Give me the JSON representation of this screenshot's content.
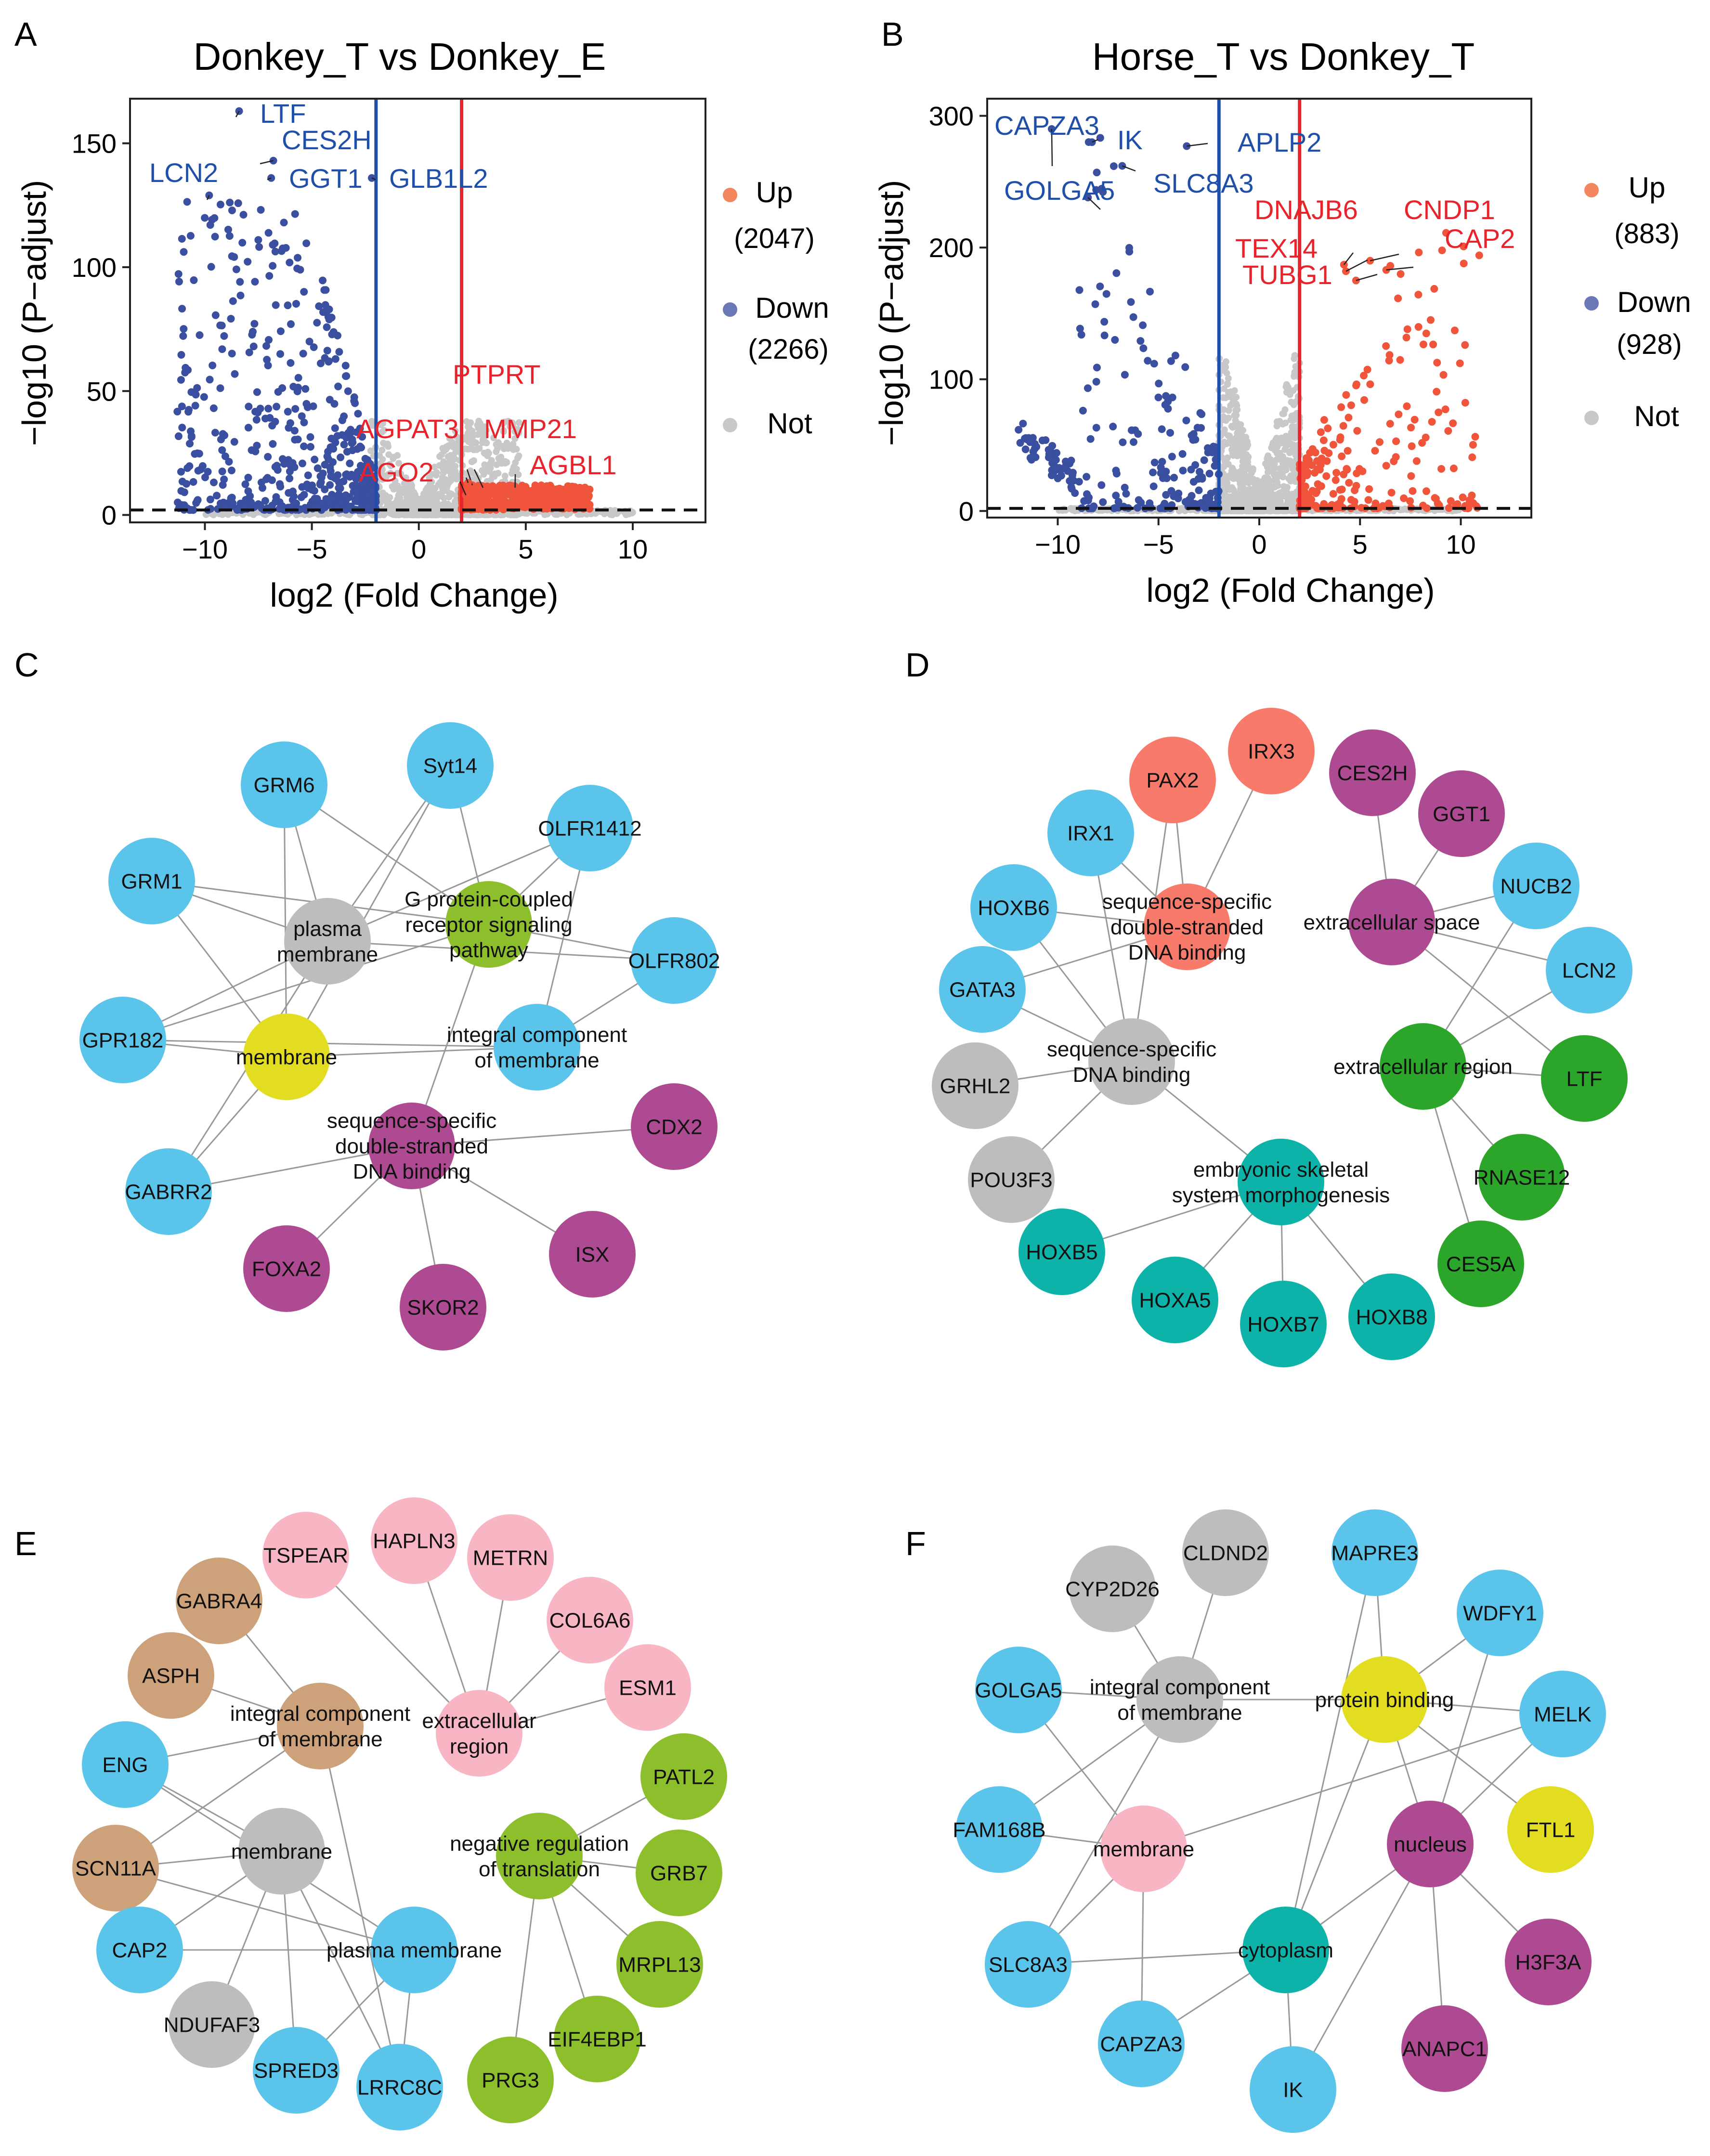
{
  "panel_letters": [
    "A",
    "B",
    "C",
    "D",
    "E",
    "F"
  ],
  "legend_labels": {
    "up": "Up",
    "down": "Down",
    "not": "Not"
  },
  "colors": {
    "up": "#f0543a",
    "up_legend": "#f4865f",
    "down": "#3a4fa0",
    "down_legend": "#6b78b6",
    "not": "#c8c8c8",
    "blue_line": "#1f4fa8",
    "red_line": "#e8232b",
    "gene_blue": "#1f4fa8",
    "gene_red": "#e8232b",
    "node_blue": "#5bc4eb",
    "node_grey": "#bdbdbd",
    "node_yellow": "#e3dd22",
    "node_green": "#8dbe2c",
    "node_purple": "#ad4a91",
    "node_salmon": "#f87a6a",
    "node_teal": "#0db3a8",
    "node_dkgreen": "#2ca62a",
    "node_pink": "#f8b6c5",
    "node_tan": "#cda27b",
    "edge": "#999999"
  },
  "chart_data": [
    {
      "type": "scatter",
      "title": "Donkey_T vs Donkey_E",
      "xlabel": "log2 (Fold Change)",
      "ylabel": "−log10 (P−adjust)",
      "xlim": [
        -13.5,
        13.4
      ],
      "ylim": [
        -3,
        168
      ],
      "xticks": [
        -10,
        -5,
        0,
        5,
        10
      ],
      "yticks": [
        0,
        50,
        100,
        150
      ],
      "vlines": [
        -2,
        2
      ],
      "hline": 2,
      "legend": {
        "up_label": "Up",
        "up_count": "(2047)",
        "down_label": "Down",
        "down_count": "(2266)",
        "not_label": "Not"
      },
      "series_counts": {
        "up": 2047,
        "down": 2266
      },
      "seed": 11,
      "labeled_genes": [
        {
          "name": "LTF",
          "x": -8.4,
          "y": 163,
          "group": "down"
        },
        {
          "name": "CES2H",
          "x": -6.8,
          "y": 143,
          "group": "down"
        },
        {
          "name": "GGT1",
          "x": -6.9,
          "y": 136,
          "group": "down"
        },
        {
          "name": "LCN2",
          "x": -9.8,
          "y": 129,
          "group": "down"
        },
        {
          "name": "GLB1L2",
          "x": -2.2,
          "y": 136,
          "group": "down"
        },
        {
          "name": "PTPRT",
          "x": 2.5,
          "y": 12,
          "group": "up"
        },
        {
          "name": "MMP21",
          "x": 3.0,
          "y": 11,
          "group": "up"
        },
        {
          "name": "AGPAT3",
          "x": 2.3,
          "y": 13,
          "group": "up"
        },
        {
          "name": "AGO2",
          "x": 2.2,
          "y": 8,
          "group": "up"
        },
        {
          "name": "AGBL1",
          "x": 4.5,
          "y": 11,
          "group": "up"
        }
      ]
    },
    {
      "type": "scatter",
      "title": "Horse_T vs Donkey_T",
      "xlabel": "log2 (Fold Change)",
      "ylabel": "−log10 (P−adjust)",
      "xlim": [
        -13.5,
        13.5
      ],
      "ylim": [
        -5,
        313
      ],
      "xticks": [
        -10,
        -5,
        0,
        5,
        10
      ],
      "yticks": [
        0,
        100,
        200,
        300
      ],
      "vlines": [
        -2,
        2
      ],
      "hline": 2,
      "legend": {
        "up_label": "Up",
        "up_count": "(883)",
        "down_label": "Down",
        "down_count": "(928)",
        "not_label": "Not"
      },
      "series_counts": {
        "up": 883,
        "down": 928
      },
      "seed": 29,
      "labeled_genes": [
        {
          "name": "CAPZA3",
          "x": -10.3,
          "y": 290,
          "group": "down"
        },
        {
          "name": "IK",
          "x": -8.3,
          "y": 280,
          "group": "down"
        },
        {
          "name": "APLP2",
          "x": -3.6,
          "y": 277,
          "group": "down"
        },
        {
          "name": "SLC8A3",
          "x": -6.8,
          "y": 262,
          "group": "down"
        },
        {
          "name": "GOLGA5",
          "x": -8.5,
          "y": 238,
          "group": "down"
        },
        {
          "name": "DNAJB6",
          "x": 4.2,
          "y": 187,
          "group": "up"
        },
        {
          "name": "CNDP1",
          "x": 5.5,
          "y": 190,
          "group": "up"
        },
        {
          "name": "TEX14",
          "x": 4.3,
          "y": 182,
          "group": "up"
        },
        {
          "name": "CAP2",
          "x": 6.3,
          "y": 183,
          "group": "up"
        },
        {
          "name": "TUBG1",
          "x": 4.8,
          "y": 175,
          "group": "up"
        }
      ]
    },
    {
      "type": "network",
      "panel": "C",
      "nodes": [
        {
          "id": "GRM6",
          "label": "GRM6",
          "color": "blue"
        },
        {
          "id": "Syt14",
          "label": "Syt14",
          "color": "blue"
        },
        {
          "id": "OLFR1412",
          "label": "OLFR1412",
          "color": "blue"
        },
        {
          "id": "GRM1",
          "label": "GRM1",
          "color": "blue"
        },
        {
          "id": "pm",
          "label": "plasma\nmembrane",
          "color": "grey"
        },
        {
          "id": "gpcr",
          "label": "G protein-coupled\nreceptor signaling\npathway",
          "color": "green"
        },
        {
          "id": "OLFR802",
          "label": "OLFR802",
          "color": "blue"
        },
        {
          "id": "GPR182",
          "label": "GPR182",
          "color": "blue"
        },
        {
          "id": "mem",
          "label": "membrane",
          "color": "yellow"
        },
        {
          "id": "icm",
          "label": "integral component\nof membrane",
          "color": "blue"
        },
        {
          "id": "ssds",
          "label": "sequence-specific\ndouble-stranded\nDNA binding",
          "color": "purple"
        },
        {
          "id": "CDX2",
          "label": "CDX2",
          "color": "purple"
        },
        {
          "id": "GABRR2",
          "label": "GABRR2",
          "color": "blue"
        },
        {
          "id": "FOXA2",
          "label": "FOXA2",
          "color": "purple"
        },
        {
          "id": "SKOR2",
          "label": "SKOR2",
          "color": "purple"
        },
        {
          "id": "ISX",
          "label": "ISX",
          "color": "purple"
        }
      ],
      "edges": [
        [
          "GRM6",
          "pm"
        ],
        [
          "GRM6",
          "gpcr"
        ],
        [
          "GRM6",
          "mem"
        ],
        [
          "Syt14",
          "pm"
        ],
        [
          "Syt14",
          "mem"
        ],
        [
          "Syt14",
          "gpcr"
        ],
        [
          "OLFR1412",
          "gpcr"
        ],
        [
          "OLFR1412",
          "pm"
        ],
        [
          "OLFR1412",
          "icm"
        ],
        [
          "GRM1",
          "pm"
        ],
        [
          "GRM1",
          "gpcr"
        ],
        [
          "GRM1",
          "mem"
        ],
        [
          "OLFR802",
          "gpcr"
        ],
        [
          "OLFR802",
          "pm"
        ],
        [
          "OLFR802",
          "icm"
        ],
        [
          "GPR182",
          "pm"
        ],
        [
          "GPR182",
          "mem"
        ],
        [
          "GPR182",
          "gpcr"
        ],
        [
          "GPR182",
          "icm"
        ],
        [
          "GABRR2",
          "pm"
        ],
        [
          "GABRR2",
          "mem"
        ],
        [
          "GABRR2",
          "ssds"
        ],
        [
          "CDX2",
          "ssds"
        ],
        [
          "FOXA2",
          "ssds"
        ],
        [
          "SKOR2",
          "ssds"
        ],
        [
          "ISX",
          "ssds"
        ],
        [
          "mem",
          "icm"
        ],
        [
          "gpcr",
          "ssds"
        ]
      ]
    },
    {
      "type": "network",
      "panel": "D",
      "nodes": [
        {
          "id": "IRX3",
          "label": "IRX3",
          "color": "salmon"
        },
        {
          "id": "PAX2",
          "label": "PAX2",
          "color": "salmon"
        },
        {
          "id": "CES2H",
          "label": "CES2H",
          "color": "purple"
        },
        {
          "id": "GGT1",
          "label": "GGT1",
          "color": "purple"
        },
        {
          "id": "IRX1",
          "label": "IRX1",
          "color": "blue"
        },
        {
          "id": "NUCB2",
          "label": "NUCB2",
          "color": "blue"
        },
        {
          "id": "HOXB6",
          "label": "HOXB6",
          "color": "blue"
        },
        {
          "id": "ssds2",
          "label": "sequence-specific\ndouble-stranded\nDNA binding",
          "color": "salmon"
        },
        {
          "id": "es",
          "label": "extracellular space",
          "color": "purple"
        },
        {
          "id": "LCN2",
          "label": "LCN2",
          "color": "blue"
        },
        {
          "id": "GATA3",
          "label": "GATA3",
          "color": "blue"
        },
        {
          "id": "ssdb",
          "label": "sequence-specific\nDNA binding",
          "color": "grey"
        },
        {
          "id": "er",
          "label": "extracellular region",
          "color": "dkgreen"
        },
        {
          "id": "LTF",
          "label": "LTF",
          "color": "dkgreen"
        },
        {
          "id": "GRHL2",
          "label": "GRHL2",
          "color": "grey"
        },
        {
          "id": "RNASE12",
          "label": "RNASE12",
          "color": "dkgreen"
        },
        {
          "id": "POU3F3",
          "label": "POU3F3",
          "color": "grey"
        },
        {
          "id": "esm",
          "label": "embryonic skeletal\nsystem morphogenesis",
          "color": "teal"
        },
        {
          "id": "HOXB5",
          "label": "HOXB5",
          "color": "teal"
        },
        {
          "id": "CES5A",
          "label": "CES5A",
          "color": "dkgreen"
        },
        {
          "id": "HOXA5",
          "label": "HOXA5",
          "color": "teal"
        },
        {
          "id": "HOXB7",
          "label": "HOXB7",
          "color": "teal"
        },
        {
          "id": "HOXB8",
          "label": "HOXB8",
          "color": "teal"
        }
      ],
      "edges": [
        [
          "IRX3",
          "ssds2"
        ],
        [
          "PAX2",
          "ssds2"
        ],
        [
          "IRX1",
          "ssds2"
        ],
        [
          "HOXB6",
          "ssds2"
        ],
        [
          "GATA3",
          "ssds2"
        ],
        [
          "HOXB6",
          "ssdb"
        ],
        [
          "GATA3",
          "ssdb"
        ],
        [
          "IRX1",
          "ssdb"
        ],
        [
          "GRHL2",
          "ssdb"
        ],
        [
          "POU3F3",
          "ssdb"
        ],
        [
          "ssdb",
          "esm"
        ],
        [
          "PAX2",
          "ssdb"
        ],
        [
          "CES2H",
          "es"
        ],
        [
          "GGT1",
          "es"
        ],
        [
          "NUCB2",
          "es"
        ],
        [
          "LCN2",
          "es"
        ],
        [
          "LTF",
          "es"
        ],
        [
          "NUCB2",
          "er"
        ],
        [
          "LCN2",
          "er"
        ],
        [
          "LTF",
          "er"
        ],
        [
          "RNASE12",
          "er"
        ],
        [
          "CES5A",
          "er"
        ],
        [
          "HOXB5",
          "esm"
        ],
        [
          "HOXA5",
          "esm"
        ],
        [
          "HOXB7",
          "esm"
        ],
        [
          "HOXB8",
          "esm"
        ]
      ]
    },
    {
      "type": "network",
      "panel": "E",
      "nodes": [
        {
          "id": "TSPEAR",
          "label": "TSPEAR",
          "color": "pink"
        },
        {
          "id": "HAPLN3",
          "label": "HAPLN3",
          "color": "pink"
        },
        {
          "id": "METRN",
          "label": "METRN",
          "color": "pink"
        },
        {
          "id": "GABRA4",
          "label": "GABRA4",
          "color": "tan"
        },
        {
          "id": "COL6A6",
          "label": "COL6A6",
          "color": "pink"
        },
        {
          "id": "ASPH",
          "label": "ASPH",
          "color": "tan"
        },
        {
          "id": "ESM1",
          "label": "ESM1",
          "color": "pink"
        },
        {
          "id": "icm2",
          "label": "integral component\nof membrane",
          "color": "tan"
        },
        {
          "id": "er2",
          "label": "extracellular\nregion",
          "color": "pink"
        },
        {
          "id": "ENG",
          "label": "ENG",
          "color": "blue"
        },
        {
          "id": "PATL2",
          "label": "PATL2",
          "color": "green"
        },
        {
          "id": "mem2",
          "label": "membrane",
          "color": "grey"
        },
        {
          "id": "nrt",
          "label": "negative regulation\nof translation",
          "color": "green"
        },
        {
          "id": "SCN11A",
          "label": "SCN11A",
          "color": "tan"
        },
        {
          "id": "GRB7",
          "label": "GRB7",
          "color": "green"
        },
        {
          "id": "CAP2",
          "label": "CAP2",
          "color": "blue"
        },
        {
          "id": "pm2",
          "label": "plasma membrane",
          "color": "blue"
        },
        {
          "id": "MRPL13",
          "label": "MRPL13",
          "color": "green"
        },
        {
          "id": "NDUFAF3",
          "label": "NDUFAF3",
          "color": "grey"
        },
        {
          "id": "EIF4EBP1",
          "label": "EIF4EBP1",
          "color": "green"
        },
        {
          "id": "SPRED3",
          "label": "SPRED3",
          "color": "blue"
        },
        {
          "id": "LRRC8C",
          "label": "LRRC8C",
          "color": "blue"
        },
        {
          "id": "PRG3",
          "label": "PRG3",
          "color": "green"
        }
      ],
      "edges": [
        [
          "TSPEAR",
          "er2"
        ],
        [
          "HAPLN3",
          "er2"
        ],
        [
          "METRN",
          "er2"
        ],
        [
          "COL6A6",
          "er2"
        ],
        [
          "ESM1",
          "er2"
        ],
        [
          "GABRA4",
          "icm2"
        ],
        [
          "ASPH",
          "icm2"
        ],
        [
          "ENG",
          "icm2"
        ],
        [
          "SCN11A",
          "icm2"
        ],
        [
          "icm2",
          "LRRC8C"
        ],
        [
          "ENG",
          "mem2"
        ],
        [
          "SCN11A",
          "mem2"
        ],
        [
          "CAP2",
          "mem2"
        ],
        [
          "NDUFAF3",
          "mem2"
        ],
        [
          "SPRED3",
          "mem2"
        ],
        [
          "LRRC8C",
          "mem2"
        ],
        [
          "ENG",
          "pm2"
        ],
        [
          "SCN11A",
          "pm2"
        ],
        [
          "CAP2",
          "pm2"
        ],
        [
          "SPRED3",
          "pm2"
        ],
        [
          "LRRC8C",
          "pm2"
        ],
        [
          "PATL2",
          "nrt"
        ],
        [
          "GRB7",
          "nrt"
        ],
        [
          "MRPL13",
          "nrt"
        ],
        [
          "EIF4EBP1",
          "nrt"
        ],
        [
          "PRG3",
          "nrt"
        ]
      ]
    },
    {
      "type": "network",
      "panel": "F",
      "nodes": [
        {
          "id": "CLDND2",
          "label": "CLDND2",
          "color": "grey"
        },
        {
          "id": "MAPRE3",
          "label": "MAPRE3",
          "color": "blue"
        },
        {
          "id": "CYP2D26",
          "label": "CYP2D26",
          "color": "grey"
        },
        {
          "id": "WDFY1",
          "label": "WDFY1",
          "color": "blue"
        },
        {
          "id": "GOLGA5",
          "label": "GOLGA5",
          "color": "blue"
        },
        {
          "id": "icm3",
          "label": "integral component\nof membrane",
          "color": "grey"
        },
        {
          "id": "pb",
          "label": "protein binding",
          "color": "yellow"
        },
        {
          "id": "MELK",
          "label": "MELK",
          "color": "blue"
        },
        {
          "id": "FAM168B",
          "label": "FAM168B",
          "color": "blue"
        },
        {
          "id": "mem3",
          "label": "membrane",
          "color": "pink"
        },
        {
          "id": "nuc",
          "label": "nucleus",
          "color": "purple"
        },
        {
          "id": "FTL1",
          "label": "FTL1",
          "color": "yellow"
        },
        {
          "id": "SLC8A3",
          "label": "SLC8A3",
          "color": "blue"
        },
        {
          "id": "cyt",
          "label": "cytoplasm",
          "color": "teal"
        },
        {
          "id": "H3F3A",
          "label": "H3F3A",
          "color": "purple"
        },
        {
          "id": "CAPZA3",
          "label": "CAPZA3",
          "color": "blue"
        },
        {
          "id": "ANAPC1",
          "label": "ANAPC1",
          "color": "purple"
        },
        {
          "id": "IK",
          "label": "IK",
          "color": "blue"
        }
      ],
      "edges": [
        [
          "CLDND2",
          "icm3"
        ],
        [
          "CYP2D26",
          "icm3"
        ],
        [
          "GOLGA5",
          "icm3"
        ],
        [
          "FAM168B",
          "icm3"
        ],
        [
          "SLC8A3",
          "icm3"
        ],
        [
          "icm3",
          "pb"
        ],
        [
          "GOLGA5",
          "mem3"
        ],
        [
          "MAPRE3",
          "pb"
        ],
        [
          "WDFY1",
          "pb"
        ],
        [
          "MELK",
          "pb"
        ],
        [
          "FTL1",
          "pb"
        ],
        [
          "pb",
          "cyt"
        ],
        [
          "pb",
          "nuc"
        ],
        [
          "FAM168B",
          "mem3"
        ],
        [
          "SLC8A3",
          "mem3"
        ],
        [
          "CAPZA3",
          "mem3"
        ],
        [
          "MELK",
          "mem3"
        ],
        [
          "WDFY1",
          "nuc"
        ],
        [
          "MELK",
          "nuc"
        ],
        [
          "H3F3A",
          "nuc"
        ],
        [
          "ANAPC1",
          "nuc"
        ],
        [
          "IK",
          "nuc"
        ],
        [
          "SLC8A3",
          "cyt"
        ],
        [
          "CAPZA3",
          "cyt"
        ],
        [
          "IK",
          "cyt"
        ],
        [
          "cyt",
          "nuc"
        ],
        [
          "MAPRE3",
          "cyt"
        ]
      ]
    }
  ]
}
